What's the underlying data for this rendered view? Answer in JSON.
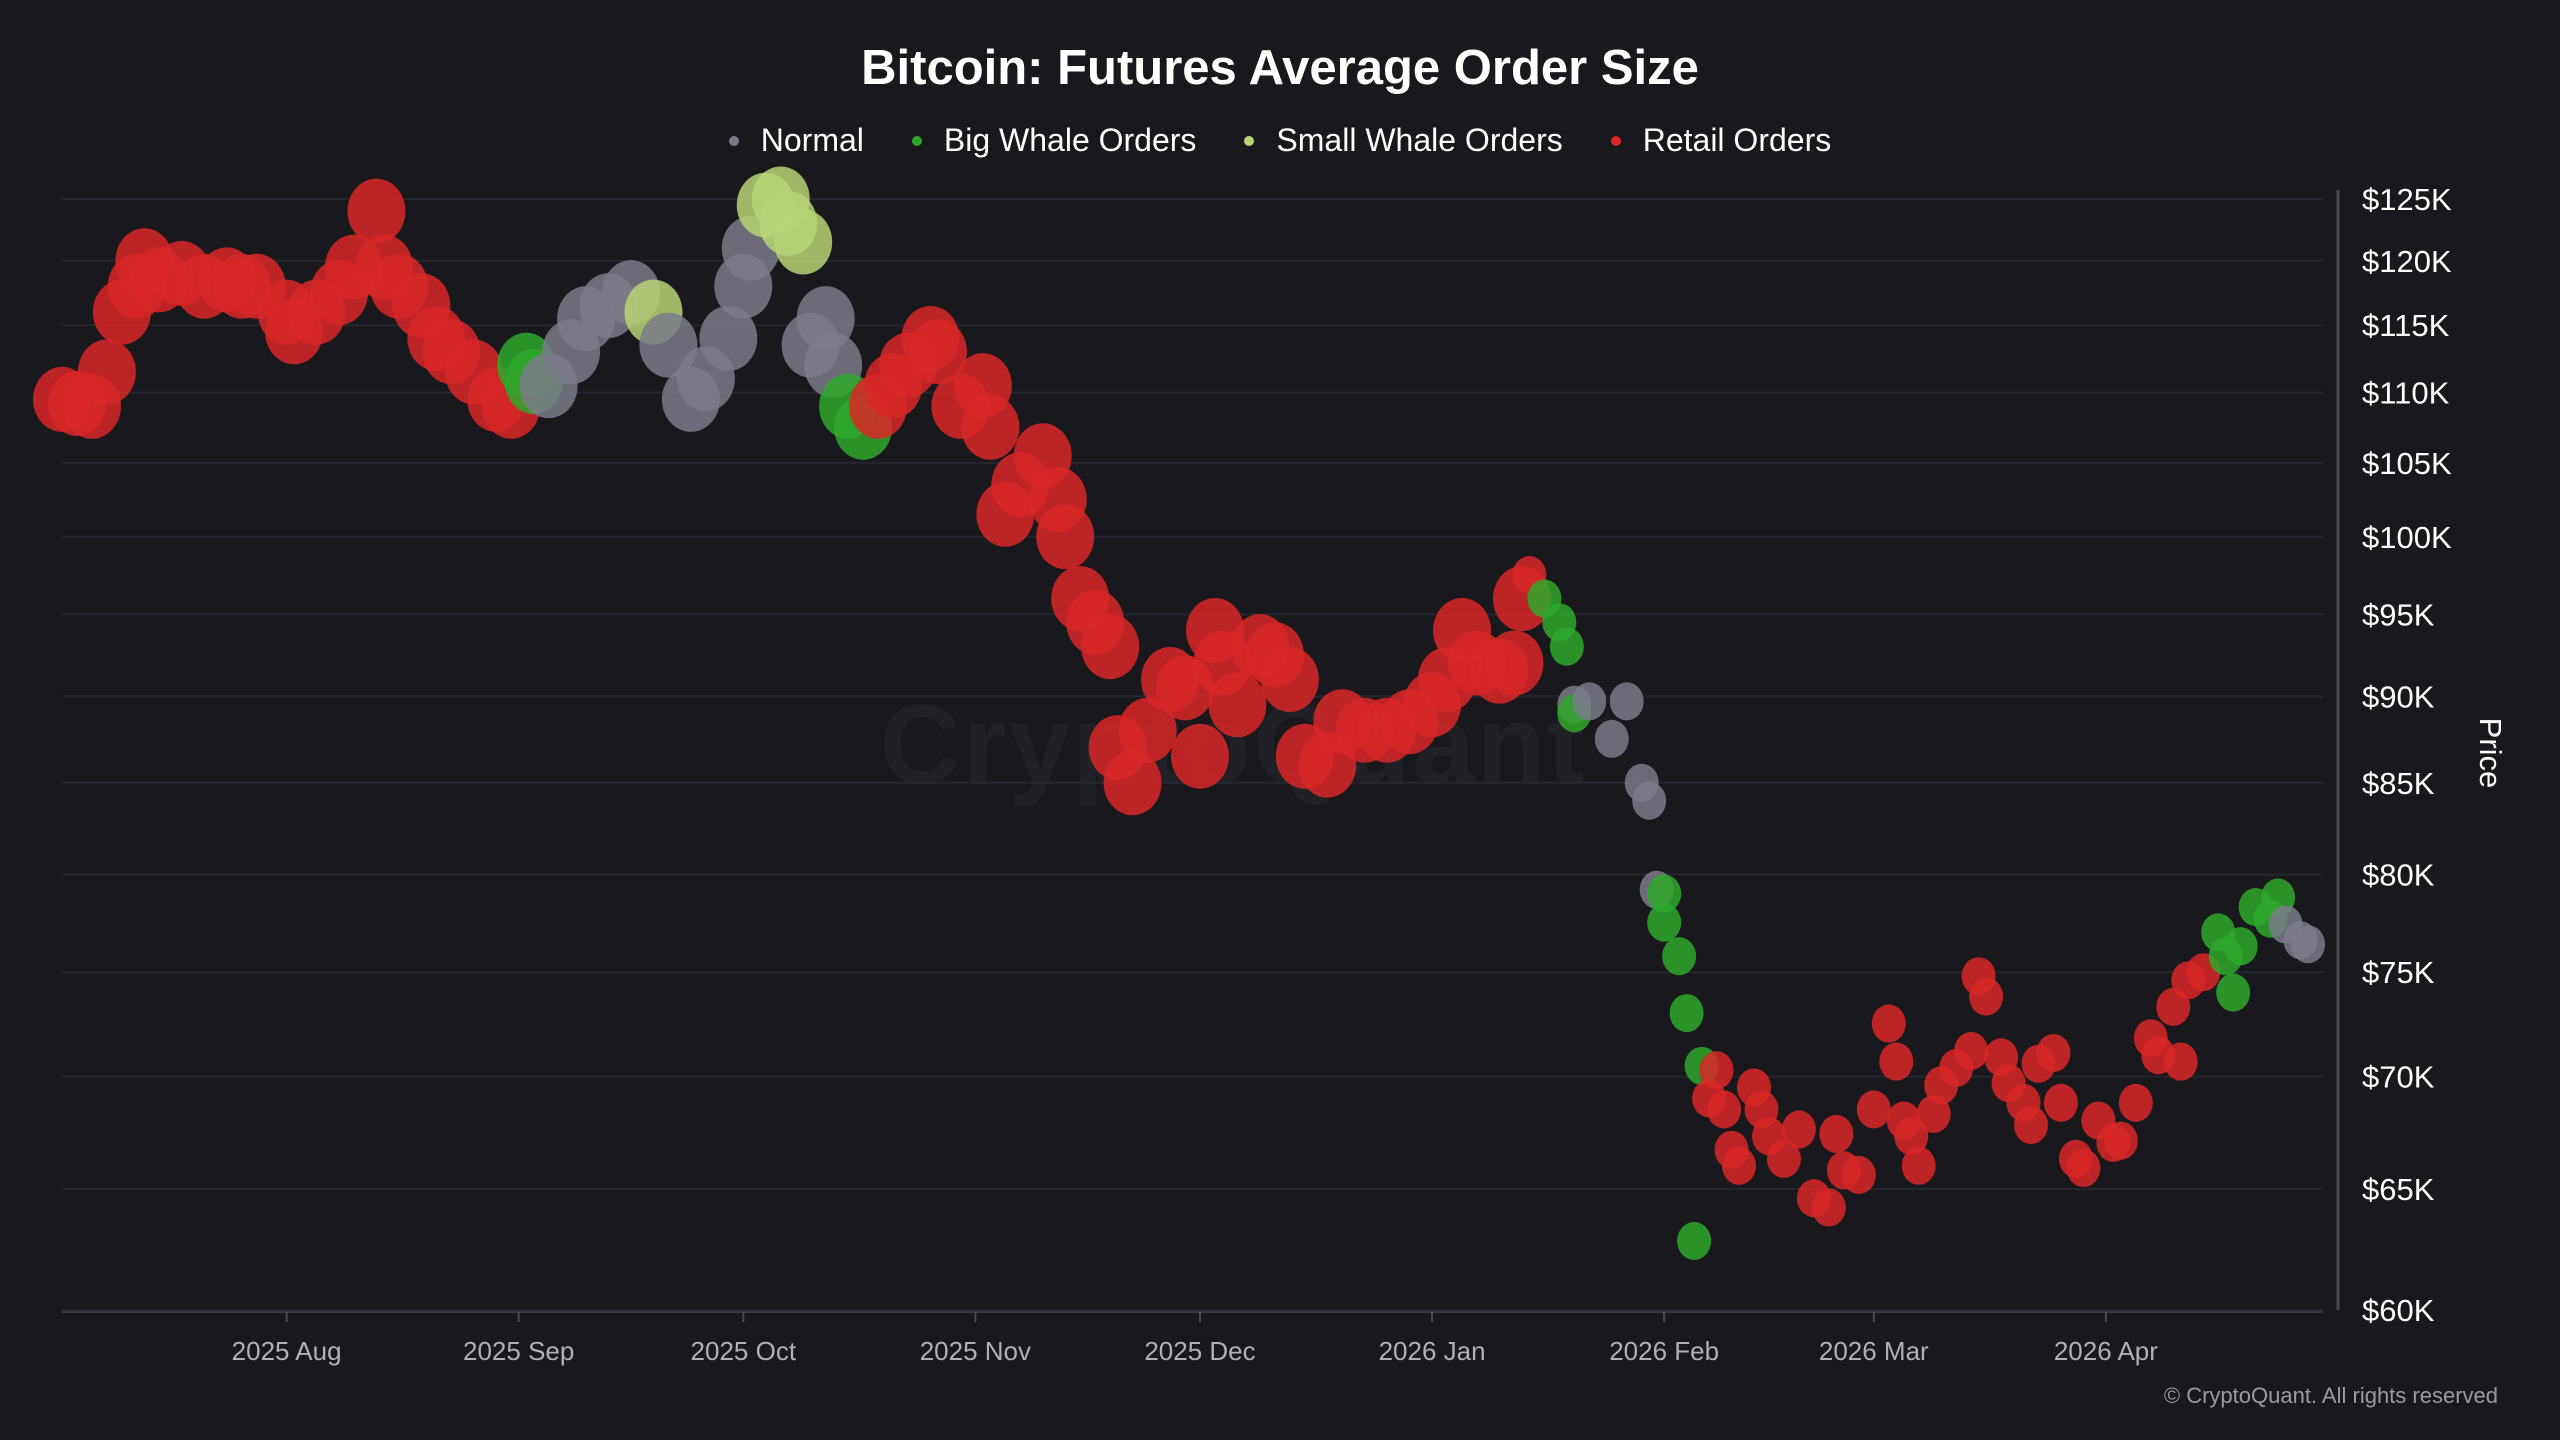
{
  "chart_data": {
    "type": "scatter",
    "title": "Bitcoin: Futures Average Order Size",
    "ylabel": "Price",
    "y_scale": "log",
    "ylim": [
      60000,
      125000
    ],
    "xlim": [
      "2025-07-02",
      "2026-04-30"
    ],
    "grid": true,
    "legend_position": "top-center",
    "y_ticks": [
      {
        "value": 125000,
        "label": "$125K"
      },
      {
        "value": 120000,
        "label": "$120K"
      },
      {
        "value": 115000,
        "label": "$115K"
      },
      {
        "value": 110000,
        "label": "$110K"
      },
      {
        "value": 105000,
        "label": "$105K"
      },
      {
        "value": 100000,
        "label": "$100K"
      },
      {
        "value": 95000,
        "label": "$95K"
      },
      {
        "value": 90000,
        "label": "$90K"
      },
      {
        "value": 85000,
        "label": "$85K"
      },
      {
        "value": 80000,
        "label": "$80K"
      },
      {
        "value": 75000,
        "label": "$75K"
      },
      {
        "value": 70000,
        "label": "$70K"
      },
      {
        "value": 65000,
        "label": "$65K"
      },
      {
        "value": 60000,
        "label": "$60K"
      }
    ],
    "x_ticks": [
      {
        "date": "2025-08-01",
        "label": "2025 Aug"
      },
      {
        "date": "2025-09-01",
        "label": "2025 Sep"
      },
      {
        "date": "2025-10-01",
        "label": "2025 Oct"
      },
      {
        "date": "2025-11-01",
        "label": "2025 Nov"
      },
      {
        "date": "2025-12-01",
        "label": "2025 Dec"
      },
      {
        "date": "2026-01-01",
        "label": "2026 Jan"
      },
      {
        "date": "2026-02-01",
        "label": "2026 Feb"
      },
      {
        "date": "2026-03-01",
        "label": "2026 Mar"
      },
      {
        "date": "2026-04-01",
        "label": "2026 Apr"
      }
    ],
    "categories": [
      {
        "key": "normal",
        "name": "Normal",
        "color": "#7b7b89"
      },
      {
        "key": "big",
        "name": "Big Whale Orders",
        "color": "#2ea82a"
      },
      {
        "key": "small",
        "name": "Small Whale Orders",
        "color": "#b8d476"
      },
      {
        "key": "retail",
        "name": "Retail Orders",
        "color": "#d92727"
      }
    ],
    "points": [
      [
        "2025-07-02",
        109500,
        "retail"
      ],
      [
        "2025-07-04",
        109200,
        "retail"
      ],
      [
        "2025-07-06",
        109000,
        "retail"
      ],
      [
        "2025-07-08",
        111500,
        "retail"
      ],
      [
        "2025-07-10",
        116000,
        "retail"
      ],
      [
        "2025-07-12",
        118000,
        "retail"
      ],
      [
        "2025-07-13",
        120000,
        "retail"
      ],
      [
        "2025-07-15",
        118500,
        "retail"
      ],
      [
        "2025-07-18",
        119000,
        "retail"
      ],
      [
        "2025-07-21",
        118000,
        "retail"
      ],
      [
        "2025-07-24",
        118500,
        "retail"
      ],
      [
        "2025-07-26",
        118000,
        "retail"
      ],
      [
        "2025-07-28",
        118000,
        "retail"
      ],
      [
        "2025-08-01",
        116000,
        "retail"
      ],
      [
        "2025-08-02",
        114500,
        "retail"
      ],
      [
        "2025-08-05",
        116000,
        "retail"
      ],
      [
        "2025-08-08",
        117500,
        "retail"
      ],
      [
        "2025-08-10",
        119500,
        "retail"
      ],
      [
        "2025-08-13",
        124000,
        "retail"
      ],
      [
        "2025-08-14",
        119500,
        "retail"
      ],
      [
        "2025-08-16",
        118000,
        "retail"
      ],
      [
        "2025-08-19",
        116500,
        "retail"
      ],
      [
        "2025-08-21",
        114000,
        "retail"
      ],
      [
        "2025-08-23",
        113000,
        "retail"
      ],
      [
        "2025-08-26",
        111500,
        "retail"
      ],
      [
        "2025-08-29",
        109500,
        "retail"
      ],
      [
        "2025-08-31",
        109000,
        "retail"
      ],
      [
        "2025-09-02",
        112000,
        "big"
      ],
      [
        "2025-09-03",
        110800,
        "big"
      ],
      [
        "2025-09-05",
        110500,
        "normal"
      ],
      [
        "2025-09-08",
        113000,
        "normal"
      ],
      [
        "2025-09-10",
        115500,
        "normal"
      ],
      [
        "2025-09-13",
        116500,
        "normal"
      ],
      [
        "2025-09-16",
        117500,
        "normal"
      ],
      [
        "2025-09-19",
        116000,
        "small"
      ],
      [
        "2025-09-21",
        113500,
        "normal"
      ],
      [
        "2025-09-24",
        109500,
        "normal"
      ],
      [
        "2025-09-26",
        111000,
        "normal"
      ],
      [
        "2025-09-29",
        114000,
        "normal"
      ],
      [
        "2025-10-01",
        118000,
        "normal"
      ],
      [
        "2025-10-02",
        121000,
        "normal"
      ],
      [
        "2025-10-04",
        124500,
        "small"
      ],
      [
        "2025-10-06",
        125000,
        "small"
      ],
      [
        "2025-10-07",
        123000,
        "small"
      ],
      [
        "2025-10-09",
        121500,
        "small"
      ],
      [
        "2025-10-10",
        113500,
        "normal"
      ],
      [
        "2025-10-12",
        115500,
        "normal"
      ],
      [
        "2025-10-13",
        112000,
        "normal"
      ],
      [
        "2025-10-15",
        109000,
        "big"
      ],
      [
        "2025-10-17",
        107500,
        "big"
      ],
      [
        "2025-10-19",
        109000,
        "retail"
      ],
      [
        "2025-10-21",
        110500,
        "retail"
      ],
      [
        "2025-10-23",
        112000,
        "retail"
      ],
      [
        "2025-10-26",
        114000,
        "retail"
      ],
      [
        "2025-10-27",
        113000,
        "retail"
      ],
      [
        "2025-10-30",
        109000,
        "retail"
      ],
      [
        "2025-11-02",
        110500,
        "retail"
      ],
      [
        "2025-11-03",
        107500,
        "retail"
      ],
      [
        "2025-11-05",
        101500,
        "retail"
      ],
      [
        "2025-11-07",
        103500,
        "retail"
      ],
      [
        "2025-11-10",
        105500,
        "retail"
      ],
      [
        "2025-11-12",
        102500,
        "retail"
      ],
      [
        "2025-11-13",
        100000,
        "retail"
      ],
      [
        "2025-11-15",
        96000,
        "retail"
      ],
      [
        "2025-11-17",
        94500,
        "retail"
      ],
      [
        "2025-11-19",
        93000,
        "retail"
      ],
      [
        "2025-11-20",
        87000,
        "retail"
      ],
      [
        "2025-11-22",
        85000,
        "retail"
      ],
      [
        "2025-11-24",
        88000,
        "retail"
      ],
      [
        "2025-11-27",
        91000,
        "retail"
      ],
      [
        "2025-11-29",
        90500,
        "retail"
      ],
      [
        "2025-12-01",
        86500,
        "retail"
      ],
      [
        "2025-12-03",
        94000,
        "retail"
      ],
      [
        "2025-12-04",
        92000,
        "retail"
      ],
      [
        "2025-12-06",
        89500,
        "retail"
      ],
      [
        "2025-12-09",
        93000,
        "retail"
      ],
      [
        "2025-12-11",
        92500,
        "retail"
      ],
      [
        "2025-12-13",
        91000,
        "retail"
      ],
      [
        "2025-12-15",
        86500,
        "retail"
      ],
      [
        "2025-12-18",
        86000,
        "retail"
      ],
      [
        "2025-12-20",
        88500,
        "retail"
      ],
      [
        "2025-12-23",
        88000,
        "retail"
      ],
      [
        "2025-12-26",
        88000,
        "retail"
      ],
      [
        "2025-12-29",
        88500,
        "retail"
      ],
      [
        "2026-01-01",
        89500,
        "retail"
      ],
      [
        "2026-01-03",
        91000,
        "retail"
      ],
      [
        "2026-01-05",
        94000,
        "retail"
      ],
      [
        "2026-01-07",
        92000,
        "retail"
      ],
      [
        "2026-01-10",
        91500,
        "retail"
      ],
      [
        "2026-01-12",
        92000,
        "retail"
      ],
      [
        "2026-01-13",
        96000,
        "retail"
      ],
      [
        "2026-01-14",
        97500,
        "retail"
      ],
      [
        "2026-01-16",
        96000,
        "big"
      ],
      [
        "2026-01-18",
        94500,
        "big"
      ],
      [
        "2026-01-19",
        93000,
        "big"
      ],
      [
        "2026-01-20",
        89500,
        "normal"
      ],
      [
        "2026-01-20",
        89000,
        "big"
      ],
      [
        "2026-01-22",
        89700,
        "normal"
      ],
      [
        "2026-01-25",
        87500,
        "normal"
      ],
      [
        "2026-01-27",
        89700,
        "normal"
      ],
      [
        "2026-01-29",
        85000,
        "normal"
      ],
      [
        "2026-01-30",
        84000,
        "normal"
      ],
      [
        "2026-01-31",
        79200,
        "normal"
      ],
      [
        "2026-02-01",
        79000,
        "big"
      ],
      [
        "2026-02-01",
        77500,
        "big"
      ],
      [
        "2026-02-03",
        75800,
        "big"
      ],
      [
        "2026-02-04",
        73000,
        "big"
      ],
      [
        "2026-02-05",
        62800,
        "big"
      ],
      [
        "2026-02-06",
        70500,
        "big"
      ],
      [
        "2026-02-07",
        69000,
        "retail"
      ],
      [
        "2026-02-08",
        70300,
        "retail"
      ],
      [
        "2026-02-09",
        68500,
        "retail"
      ],
      [
        "2026-02-10",
        66700,
        "retail"
      ],
      [
        "2026-02-11",
        66000,
        "retail"
      ],
      [
        "2026-02-13",
        69500,
        "retail"
      ],
      [
        "2026-02-14",
        68500,
        "retail"
      ],
      [
        "2026-02-15",
        67300,
        "retail"
      ],
      [
        "2026-02-17",
        66300,
        "retail"
      ],
      [
        "2026-02-19",
        67600,
        "retail"
      ],
      [
        "2026-02-21",
        64600,
        "retail"
      ],
      [
        "2026-02-23",
        64200,
        "retail"
      ],
      [
        "2026-02-24",
        67400,
        "retail"
      ],
      [
        "2026-02-25",
        65800,
        "retail"
      ],
      [
        "2026-02-27",
        65600,
        "retail"
      ],
      [
        "2026-03-01",
        68500,
        "retail"
      ],
      [
        "2026-03-03",
        72500,
        "retail"
      ],
      [
        "2026-03-04",
        70700,
        "retail"
      ],
      [
        "2026-03-05",
        68000,
        "retail"
      ],
      [
        "2026-03-06",
        67300,
        "retail"
      ],
      [
        "2026-03-07",
        66000,
        "retail"
      ],
      [
        "2026-03-09",
        68300,
        "retail"
      ],
      [
        "2026-03-10",
        69600,
        "retail"
      ],
      [
        "2026-03-12",
        70400,
        "retail"
      ],
      [
        "2026-03-14",
        71200,
        "retail"
      ],
      [
        "2026-03-15",
        74800,
        "retail"
      ],
      [
        "2026-03-16",
        73800,
        "retail"
      ],
      [
        "2026-03-18",
        70900,
        "retail"
      ],
      [
        "2026-03-19",
        69700,
        "retail"
      ],
      [
        "2026-03-21",
        68800,
        "retail"
      ],
      [
        "2026-03-22",
        67800,
        "retail"
      ],
      [
        "2026-03-23",
        70600,
        "retail"
      ],
      [
        "2026-03-25",
        71100,
        "retail"
      ],
      [
        "2026-03-26",
        68800,
        "retail"
      ],
      [
        "2026-03-28",
        66300,
        "retail"
      ],
      [
        "2026-03-29",
        65900,
        "retail"
      ],
      [
        "2026-03-31",
        68000,
        "retail"
      ],
      [
        "2026-04-02",
        67000,
        "retail"
      ],
      [
        "2026-04-03",
        67100,
        "retail"
      ],
      [
        "2026-04-05",
        68800,
        "retail"
      ],
      [
        "2026-04-07",
        71800,
        "retail"
      ],
      [
        "2026-04-08",
        71000,
        "retail"
      ],
      [
        "2026-04-10",
        73300,
        "retail"
      ],
      [
        "2026-04-11",
        70700,
        "retail"
      ],
      [
        "2026-04-12",
        74600,
        "retail"
      ],
      [
        "2026-04-14",
        75000,
        "retail"
      ],
      [
        "2026-04-16",
        77000,
        "big"
      ],
      [
        "2026-04-17",
        75800,
        "big"
      ],
      [
        "2026-04-18",
        74000,
        "big"
      ],
      [
        "2026-04-19",
        76300,
        "big"
      ],
      [
        "2026-04-21",
        78300,
        "big"
      ],
      [
        "2026-04-23",
        77700,
        "big"
      ],
      [
        "2026-04-24",
        78800,
        "big"
      ],
      [
        "2026-04-25",
        77400,
        "normal"
      ],
      [
        "2026-04-27",
        76600,
        "normal"
      ],
      [
        "2026-04-28",
        76400,
        "normal"
      ]
    ]
  },
  "footer": {
    "copyright": "© CryptoQuant. All rights reserved"
  },
  "watermark": "CryptoQuant"
}
